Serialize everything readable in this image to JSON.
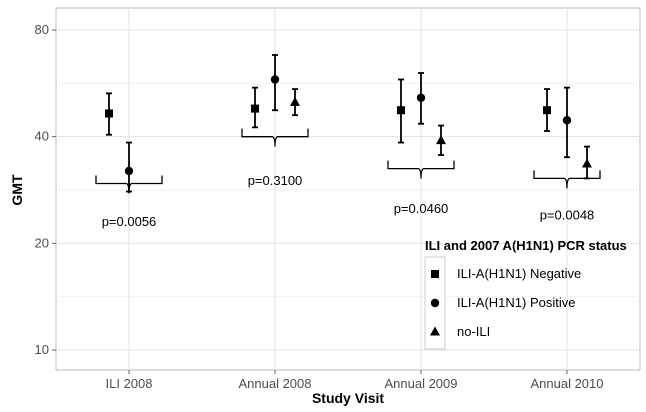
{
  "chart_data": {
    "type": "scatter",
    "subtype": "point-with-error-bars",
    "title": "",
    "xlabel": "Study Visit",
    "ylabel": "GMT",
    "y_scale": "log",
    "ylim": [
      9,
      90
    ],
    "y_ticks": [
      10,
      20,
      40,
      80
    ],
    "grid": true,
    "categories": [
      "ILI 2008",
      "Annual 2008",
      "Annual 2009",
      "Annual 2010"
    ],
    "legend": {
      "title": "ILI and 2007 A(H1N1) PCR status",
      "position": "bottom-right",
      "entries": [
        "ILI-A(H1N1) Negative",
        "ILI-A(H1N1) Positive",
        "no-ILI"
      ]
    },
    "series": [
      {
        "name": "ILI-A(H1N1) Negative",
        "marker": "square",
        "points": [
          {
            "x": "ILI 2008",
            "y": 46.5,
            "lo": 40.5,
            "hi": 53.0
          },
          {
            "x": "Annual 2008",
            "y": 48.0,
            "lo": 42.5,
            "hi": 55.0
          },
          {
            "x": "Annual 2009",
            "y": 47.5,
            "lo": 38.5,
            "hi": 58.0
          },
          {
            "x": "Annual 2010",
            "y": 47.5,
            "lo": 41.5,
            "hi": 54.5
          }
        ]
      },
      {
        "name": "ILI-A(H1N1) Positive",
        "marker": "circle",
        "points": [
          {
            "x": "ILI 2008",
            "y": 32.0,
            "lo": 28.0,
            "hi": 38.5
          },
          {
            "x": "Annual 2008",
            "y": 58.0,
            "lo": 47.5,
            "hi": 68.0
          },
          {
            "x": "Annual 2009",
            "y": 51.5,
            "lo": 43.5,
            "hi": 60.5
          },
          {
            "x": "Annual 2010",
            "y": 44.5,
            "lo": 35.0,
            "hi": 55.0
          }
        ]
      },
      {
        "name": "no-ILI",
        "marker": "triangle",
        "points": [
          {
            "x": "Annual 2008",
            "y": 50.0,
            "lo": 46.0,
            "hi": 54.5
          },
          {
            "x": "Annual 2009",
            "y": 39.0,
            "lo": 35.5,
            "hi": 43.0
          },
          {
            "x": "Annual 2010",
            "y": 33.5,
            "lo": 30.5,
            "hi": 37.5
          }
        ]
      }
    ],
    "annotations": [
      {
        "x": "ILI 2008",
        "text": "p=0.0056",
        "bracket_y": 29.5,
        "text_y": 23.0
      },
      {
        "x": "Annual 2008",
        "text": "p=0.3100",
        "bracket_y": 40.0,
        "text_y": 30.0
      },
      {
        "x": "Annual 2009",
        "text": "p=0.0460",
        "bracket_y": 32.5,
        "text_y": 25.0
      },
      {
        "x": "Annual 2010",
        "text": "p=0.0048",
        "bracket_y": 30.5,
        "text_y": 24.0
      }
    ]
  }
}
